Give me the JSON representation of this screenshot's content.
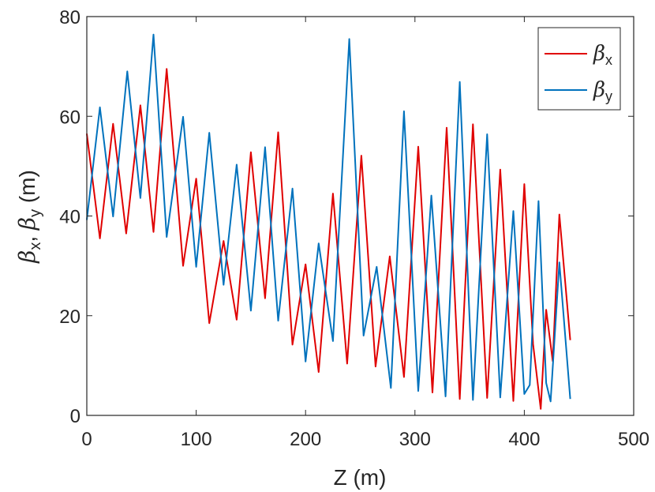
{
  "chart_data": {
    "type": "line",
    "title": "",
    "xlabel": "Z (m)",
    "ylabel_parts": {
      "sym": "β",
      "sub_x": "x",
      "sep": ", ",
      "sub_y": "y",
      "unit": " (m)"
    },
    "xlim": [
      0,
      500
    ],
    "ylim": [
      0,
      80
    ],
    "xticks": [
      "0",
      "100",
      "200",
      "300",
      "400",
      "500"
    ],
    "yticks": [
      "0",
      "20",
      "40",
      "60",
      "80"
    ],
    "grid": false,
    "legend_position": "top-right",
    "series": [
      {
        "name_sym": "β",
        "name_sub": "x",
        "color": "#e00000",
        "x": [
          0,
          12,
          24,
          36,
          49,
          61,
          73,
          88,
          100,
          112,
          125,
          137,
          150,
          163,
          175,
          188,
          200,
          212,
          225,
          238,
          251,
          264,
          277,
          290,
          303,
          316,
          329,
          341,
          353,
          366,
          378,
          390,
          400,
          408,
          415,
          420,
          426,
          432,
          442
        ],
        "y": [
          56.5,
          35.5,
          58.5,
          36.5,
          62.2,
          36.8,
          69.5,
          30.0,
          47.5,
          18.5,
          35.0,
          19.2,
          52.8,
          23.5,
          56.8,
          14.2,
          30.3,
          8.7,
          44.5,
          10.4,
          52.1,
          9.8,
          31.9,
          7.7,
          53.9,
          4.6,
          57.7,
          3.3,
          58.4,
          3.5,
          49.3,
          2.9,
          46.4,
          14.3,
          1.3,
          21.2,
          10.9,
          40.3,
          15.1
        ]
      },
      {
        "name_sym": "β",
        "name_sub": "y",
        "color": "#0072bd",
        "x": [
          0,
          12,
          24,
          37,
          49,
          61,
          73,
          88,
          100,
          112,
          125,
          137,
          150,
          163,
          175,
          188,
          200,
          212,
          225,
          240,
          253,
          265,
          278,
          290,
          303,
          315,
          328,
          341,
          353,
          366,
          378,
          390,
          400,
          405,
          413,
          420,
          424,
          432,
          442
        ],
        "y": [
          39.2,
          61.8,
          39.9,
          69.0,
          43.6,
          76.4,
          35.8,
          59.9,
          29.8,
          56.7,
          26.2,
          50.3,
          21.0,
          53.8,
          19.0,
          45.5,
          10.8,
          34.5,
          14.9,
          75.5,
          16.0,
          29.8,
          5.5,
          61.0,
          4.9,
          44.1,
          3.8,
          66.9,
          3.1,
          56.4,
          3.6,
          41.0,
          4.3,
          6.1,
          43.0,
          6.5,
          2.8,
          30.7,
          3.3
        ]
      }
    ]
  }
}
